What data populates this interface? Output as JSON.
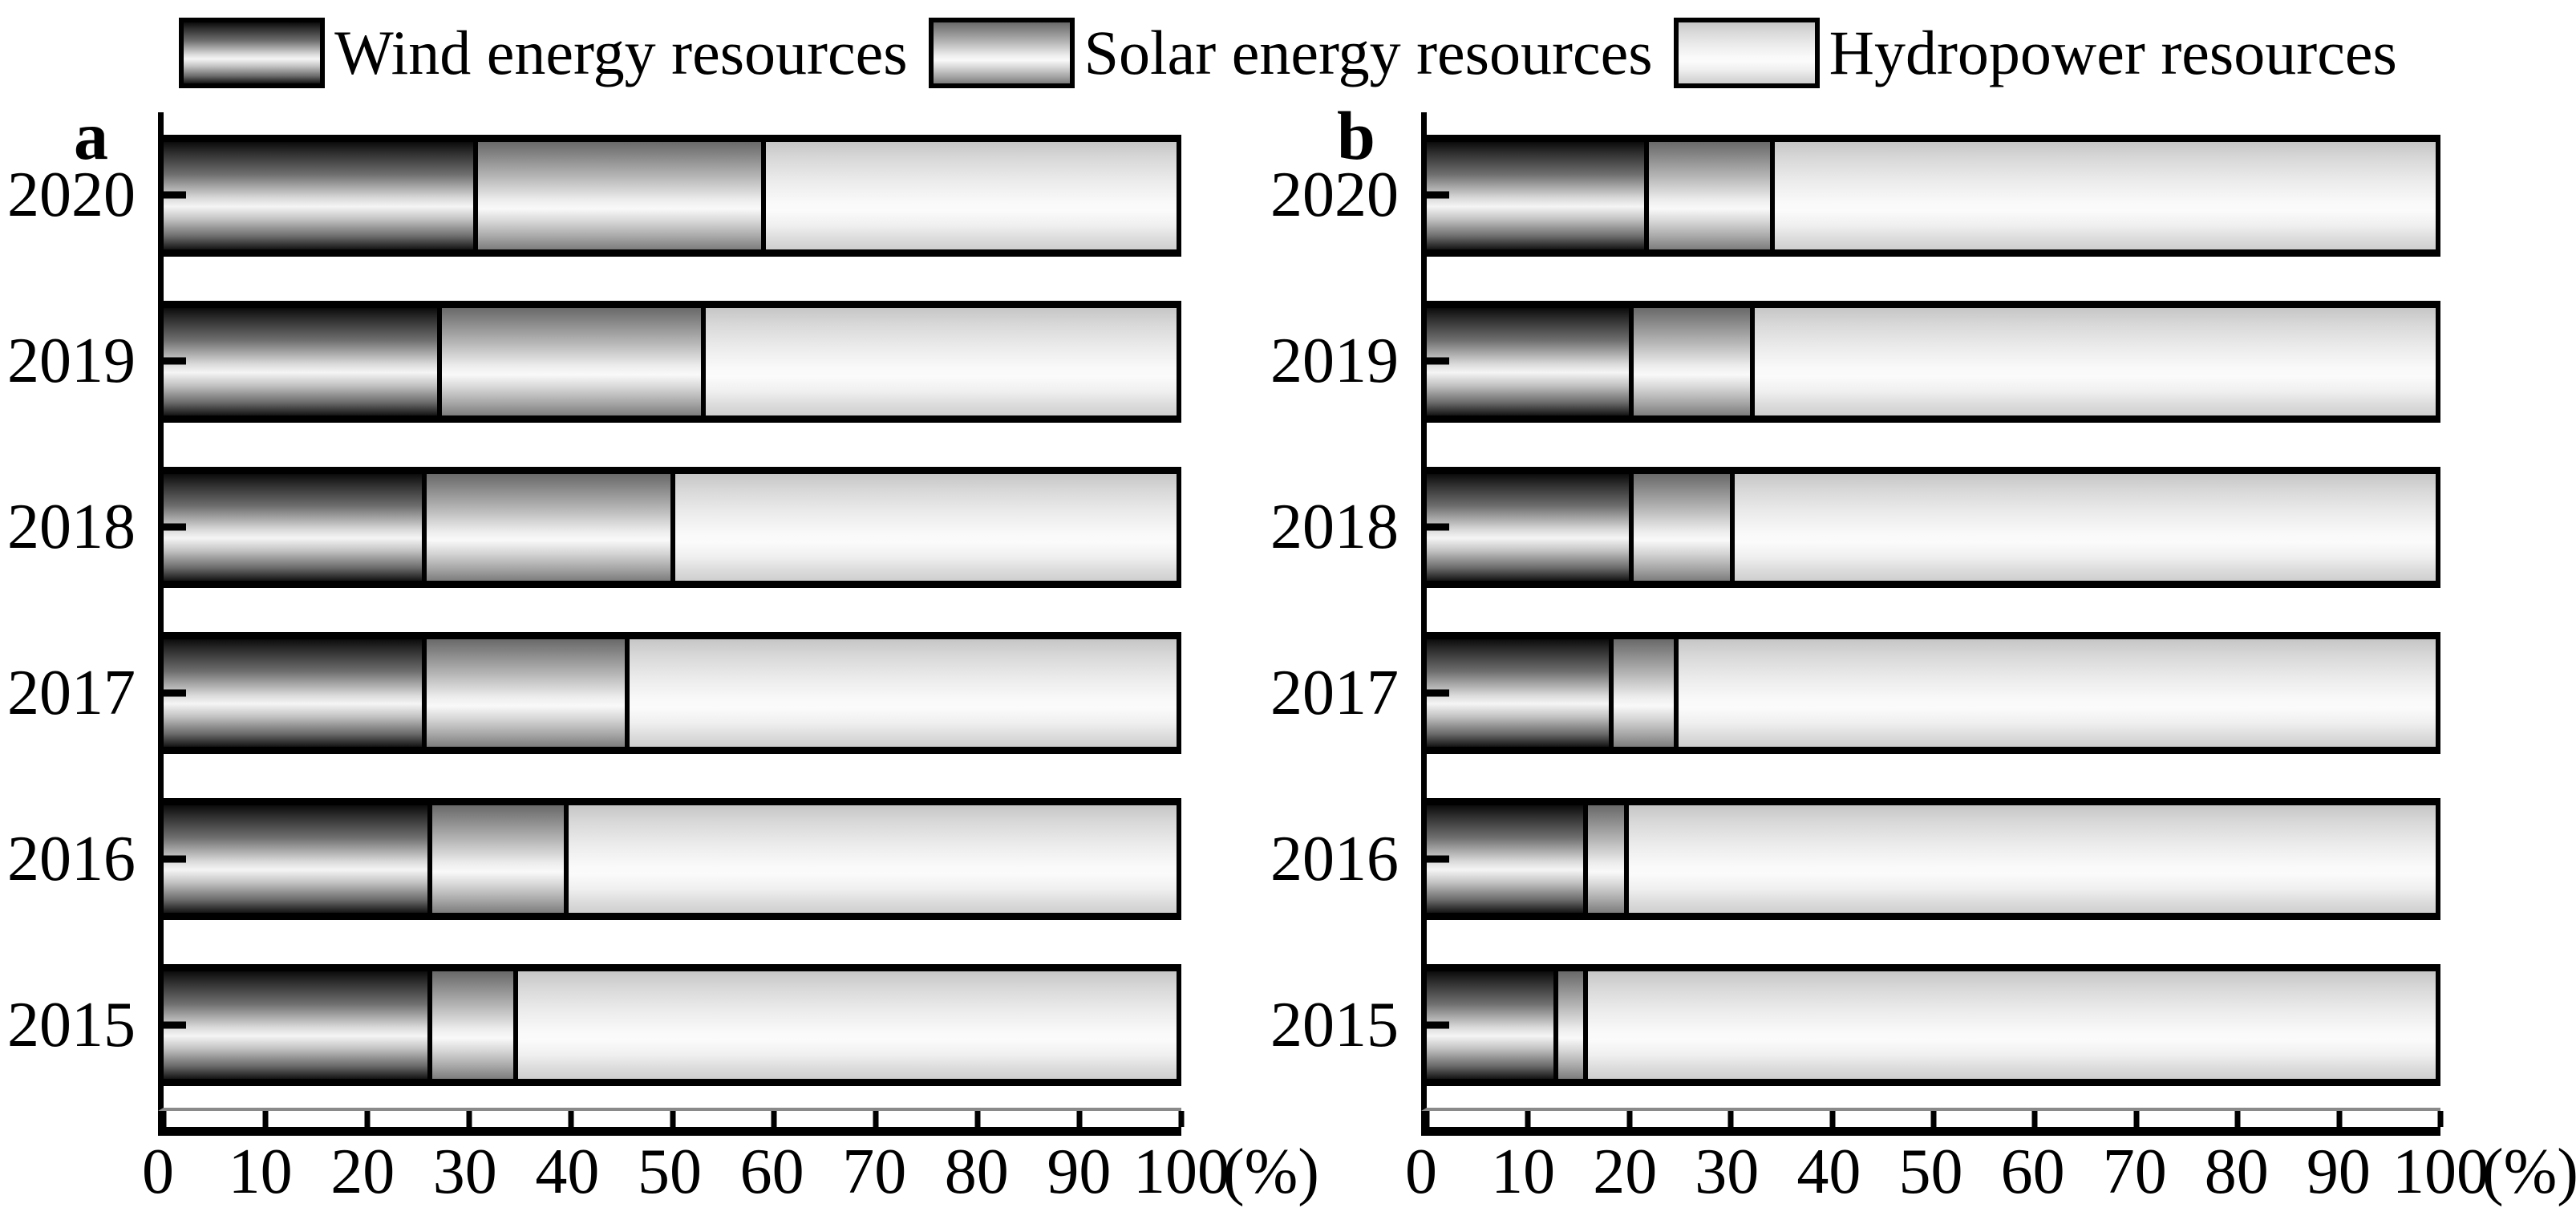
{
  "figure": {
    "legend": [
      {
        "key": "wind",
        "label": "Wind energy resources"
      },
      {
        "key": "solar",
        "label": "Solar energy resources"
      },
      {
        "key": "hydro",
        "label": "Hydropower resources"
      }
    ]
  },
  "chart_data": [
    {
      "type": "bar",
      "orientation": "horizontal",
      "stacked": true,
      "panel_label": "a",
      "categories": [
        "2020",
        "2019",
        "2018",
        "2017",
        "2016",
        "2015"
      ],
      "series": [
        {
          "name": "Wind energy resources",
          "key": "wind",
          "values": [
            31,
            27.5,
            26,
            26,
            26.5,
            26.5
          ]
        },
        {
          "name": "Solar energy resources",
          "key": "solar",
          "values": [
            28.5,
            26,
            24.5,
            20,
            13.5,
            8.5
          ]
        },
        {
          "name": "Hydropower resources",
          "key": "hydro",
          "values": [
            40.5,
            46.5,
            49.5,
            54,
            60,
            65
          ]
        }
      ],
      "xlabel": "(%)",
      "xlim": [
        0,
        100
      ],
      "xticks": [
        0,
        10,
        20,
        30,
        40,
        50,
        60,
        70,
        80,
        90,
        100
      ],
      "grid": false,
      "legend_position": "top"
    },
    {
      "type": "bar",
      "orientation": "horizontal",
      "stacked": true,
      "panel_label": "b",
      "categories": [
        "2020",
        "2019",
        "2018",
        "2017",
        "2016",
        "2015"
      ],
      "series": [
        {
          "name": "Wind energy resources",
          "key": "wind",
          "values": [
            22,
            20.5,
            20.5,
            18.5,
            16,
            13
          ]
        },
        {
          "name": "Solar energy resources",
          "key": "solar",
          "values": [
            12.5,
            12,
            10,
            6.5,
            4,
            3
          ]
        },
        {
          "name": "Hydropower resources",
          "key": "hydro",
          "values": [
            65.5,
            67.5,
            69.5,
            75,
            80,
            84
          ]
        }
      ],
      "xlabel": "(%)",
      "xlim": [
        0,
        100
      ],
      "xticks": [
        0,
        10,
        20,
        30,
        40,
        50,
        60,
        70,
        80,
        90,
        100
      ],
      "grid": false,
      "legend_position": "top"
    }
  ]
}
